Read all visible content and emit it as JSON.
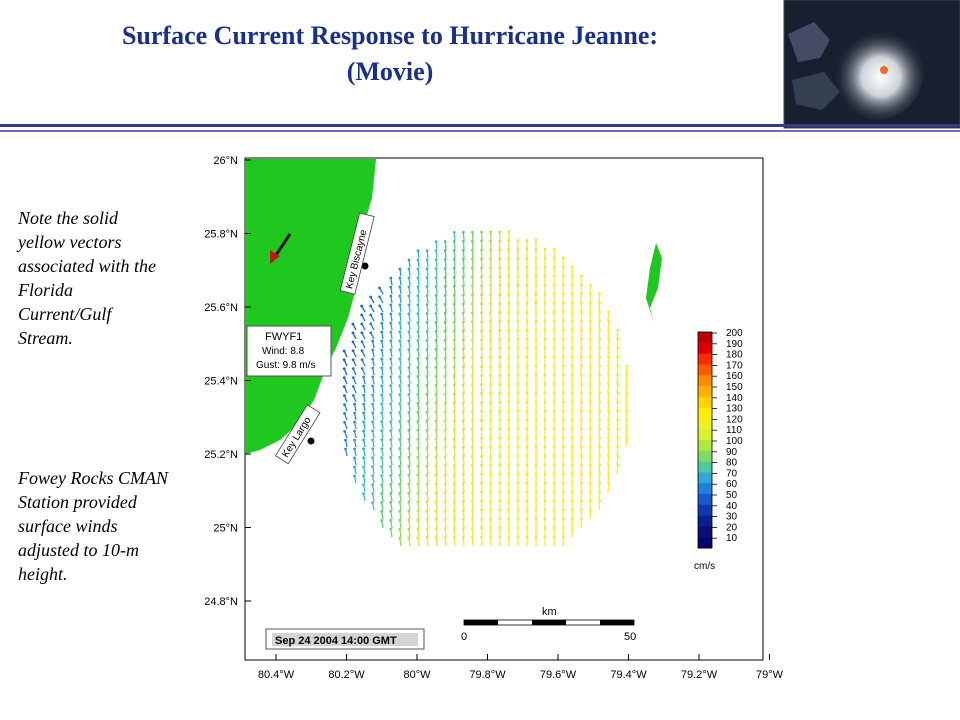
{
  "slide": {
    "title_line1": "Surface Current Response to Hurricane Jeanne:",
    "title_line2": "(Movie)",
    "note1": "Note the solid yellow vectors associated with the Florida Current/Gulf Stream.",
    "note2": "Fowey Rocks CMAN Station provided surface winds adjusted to 10-m height."
  },
  "figure": {
    "y_ticks": [
      "26°N",
      "25.8°N",
      "25.6°N",
      "25.4°N",
      "25.2°N",
      "25°N",
      "24.8°N"
    ],
    "x_ticks": [
      "80.4°W",
      "80.2°W",
      "80°W",
      "79.8°W",
      "79.6°W",
      "79.4°W",
      "79.2°W",
      "79°W"
    ],
    "place_key_biscayne": "Key Biscayne",
    "place_key_largo": "Key Largo",
    "station_name": "FWYF1",
    "station_wind": "Wind: 8.8",
    "station_gust": "Gust: 9.8 m/s",
    "timestamp": "Sep 24 2004 14:00 GMT",
    "scale_unit": "km",
    "scale_start": "0",
    "scale_end": "50",
    "colorbar_ticks": [
      "200",
      "190",
      "180",
      "170",
      "160",
      "150",
      "140",
      "130",
      "120",
      "110",
      "100",
      "90",
      "80",
      "70",
      "60",
      "50",
      "40",
      "30",
      "20",
      "10"
    ],
    "colorbar_unit": "cm/s"
  },
  "colors": {
    "title": "#1a2f8c",
    "land": "#1ec81e",
    "rule": "#3a3a8c"
  }
}
